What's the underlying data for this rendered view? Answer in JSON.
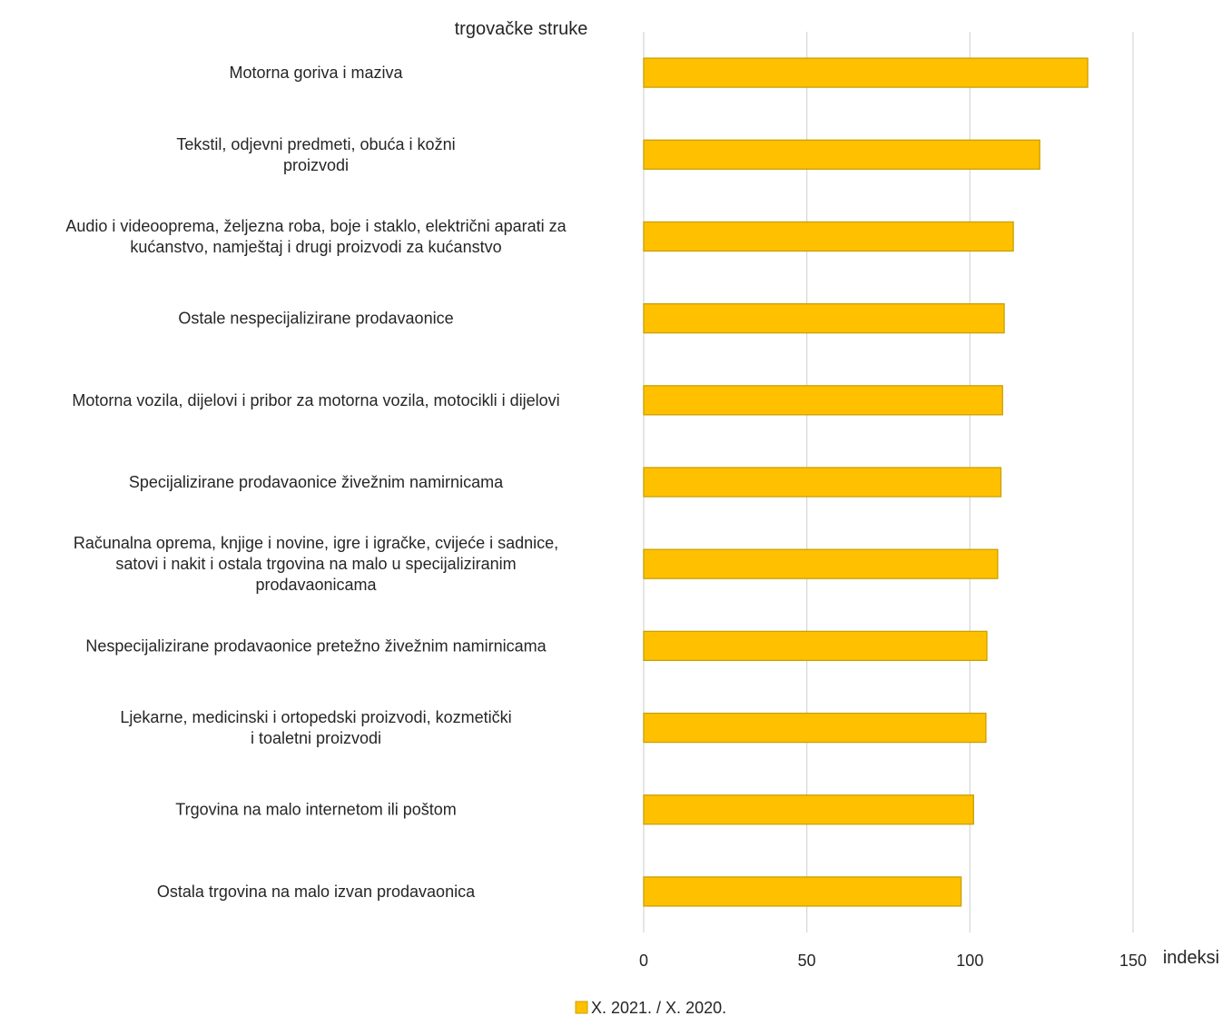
{
  "chart_data": {
    "type": "bar",
    "orientation": "horizontal",
    "category_axis_title": "trgovačke struke",
    "value_axis_title": "indeksi",
    "xlim": [
      0,
      150
    ],
    "ticks": [
      0,
      50,
      100,
      150
    ],
    "grid": true,
    "legend_position": "bottom",
    "categories": [
      [
        "Motorna goriva i maziva"
      ],
      [
        "Tekstil, odjevni predmeti, obuća i kožni",
        "proizvodi"
      ],
      [
        "Audio i videooprema, željezna roba, boje i staklo, električni aparati za",
        "kućanstvo, namještaj i drugi proizvodi za kućanstvo"
      ],
      [
        "Ostale nespecijalizirane prodavaonice"
      ],
      [
        "Motorna vozila, dijelovi i pribor za motorna vozila, motocikli i dijelovi"
      ],
      [
        "Specijalizirane prodavaonice živežnim namirnicama"
      ],
      [
        "Računalna oprema, knjige i novine, igre i igračke, cvijeće i sadnice,",
        "satovi i nakit i ostala trgovina na malo u specijaliziranim",
        "prodavaonicama"
      ],
      [
        "Nespecijalizirane prodavaonice pretežno živežnim namirnicama"
      ],
      [
        "Ljekarne, medicinski i ortopedski proizvodi, kozmetički",
        "i toaletni proizvodi"
      ],
      [
        "Trgovina na malo internetom ili poštom"
      ],
      [
        "Ostala trgovina na malo izvan prodavaonica"
      ]
    ],
    "series": [
      {
        "name": "X. 2021. / X. 2020.",
        "color": "#FFC000",
        "border_color": "#C9A000",
        "values": [
          136.1,
          121.4,
          113.3,
          110.5,
          110.0,
          109.5,
          108.5,
          105.2,
          104.9,
          101.1,
          97.3
        ]
      }
    ]
  }
}
